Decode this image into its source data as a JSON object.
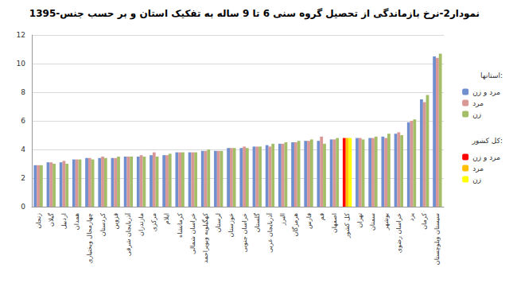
{
  "chart_data": {
    "type": "bar",
    "title": "نمودار2-نرخ بازماندگی از تحصیل گروه سنی 6 تا 9 ساله به تفکیک استان و بر حسب جنس-1395",
    "annotations": [
      "استانها:",
      "کل کشور:"
    ],
    "categories": [
      "زنجان",
      "گیلان",
      "اردبیل",
      "همدان",
      "چهارمحال وبختیاری",
      "کردستان",
      "قزوین",
      "آذربایجان شرقی",
      "مازندران",
      "مرکزی",
      "ایلام",
      "کرمانشاه",
      "خراسان شمالی",
      "کهگیلویه وبویراحمد",
      "لرستان",
      "خوزستان",
      "خراسان جنوبی",
      "گلستان",
      "آذربایجان غربی",
      "البرز",
      "هرمزگان",
      "فارس",
      "قم",
      "اصفهان",
      "کل کشور",
      "تهران",
      "سمنان",
      "بوشهر",
      "خراسان رضوی",
      "یزد",
      "کرمان",
      "سیستان وبلوچستان"
    ],
    "series": [
      {
        "name": "مرد و زن",
        "color": "#6f8fcf",
        "values": [
          2.9,
          3.1,
          3.1,
          3.3,
          3.4,
          3.4,
          3.4,
          3.5,
          3.5,
          3.6,
          3.6,
          3.8,
          3.8,
          3.9,
          3.9,
          4.1,
          4.1,
          4.2,
          4.3,
          4.4,
          4.5,
          4.6,
          4.6,
          4.7,
          4.8,
          4.8,
          4.8,
          4.9,
          5.1,
          5.9,
          7.5,
          10.5
        ],
        "colors": [
          "#6f8fcf",
          "#6f8fcf",
          "#6f8fcf",
          "#6f8fcf",
          "#6f8fcf",
          "#6f8fcf",
          "#6f8fcf",
          "#6f8fcf",
          "#6f8fcf",
          "#6f8fcf",
          "#6f8fcf",
          "#6f8fcf",
          "#6f8fcf",
          "#6f8fcf",
          "#6f8fcf",
          "#6f8fcf",
          "#6f8fcf",
          "#6f8fcf",
          "#6f8fcf",
          "#6f8fcf",
          "#6f8fcf",
          "#6f8fcf",
          "#6f8fcf",
          "#6f8fcf",
          "#ff0000",
          "#6f8fcf",
          "#6f8fcf",
          "#6f8fcf",
          "#6f8fcf",
          "#6f8fcf",
          "#6f8fcf",
          "#6f8fcf"
        ]
      },
      {
        "name": "مرد",
        "color": "#d99795",
        "values": [
          2.9,
          3.1,
          3.2,
          3.3,
          3.4,
          3.5,
          3.4,
          3.5,
          3.6,
          3.8,
          3.6,
          3.8,
          3.8,
          3.9,
          3.9,
          4.1,
          4.2,
          4.2,
          4.2,
          4.4,
          4.5,
          4.6,
          4.9,
          4.7,
          4.8,
          4.8,
          4.8,
          4.8,
          5.2,
          6.0,
          7.3,
          10.4
        ],
        "colors": [
          "#d99795",
          "#d99795",
          "#d99795",
          "#d99795",
          "#d99795",
          "#d99795",
          "#d99795",
          "#d99795",
          "#d99795",
          "#d99795",
          "#d99795",
          "#d99795",
          "#d99795",
          "#d99795",
          "#d99795",
          "#d99795",
          "#d99795",
          "#d99795",
          "#d99795",
          "#d99795",
          "#d99795",
          "#d99795",
          "#d99795",
          "#d99795",
          "#ffc000",
          "#d99795",
          "#d99795",
          "#d99795",
          "#d99795",
          "#d99795",
          "#d99795",
          "#d99795"
        ]
      },
      {
        "name": "زن",
        "color": "#a3be67",
        "values": [
          2.9,
          3.0,
          3.0,
          3.3,
          3.3,
          3.4,
          3.5,
          3.5,
          3.5,
          3.5,
          3.7,
          3.8,
          3.8,
          4.0,
          3.9,
          4.1,
          4.1,
          4.2,
          4.4,
          4.5,
          4.6,
          4.7,
          4.4,
          4.8,
          4.8,
          4.7,
          4.9,
          5.1,
          5.0,
          6.1,
          7.8,
          10.7
        ],
        "colors": [
          "#a3be67",
          "#a3be67",
          "#a3be67",
          "#a3be67",
          "#a3be67",
          "#a3be67",
          "#a3be67",
          "#a3be67",
          "#a3be67",
          "#a3be67",
          "#a3be67",
          "#a3be67",
          "#a3be67",
          "#a3be67",
          "#a3be67",
          "#a3be67",
          "#a3be67",
          "#a3be67",
          "#a3be67",
          "#a3be67",
          "#a3be67",
          "#a3be67",
          "#a3be67",
          "#a3be67",
          "#ffff00",
          "#a3be67",
          "#a3be67",
          "#a3be67",
          "#a3be67",
          "#a3be67",
          "#a3be67",
          "#a3be67"
        ]
      }
    ],
    "ylim": [
      0,
      12
    ],
    "yticks": [
      0,
      2,
      4,
      6,
      8,
      10,
      12
    ],
    "grid": true,
    "legend": "right"
  }
}
